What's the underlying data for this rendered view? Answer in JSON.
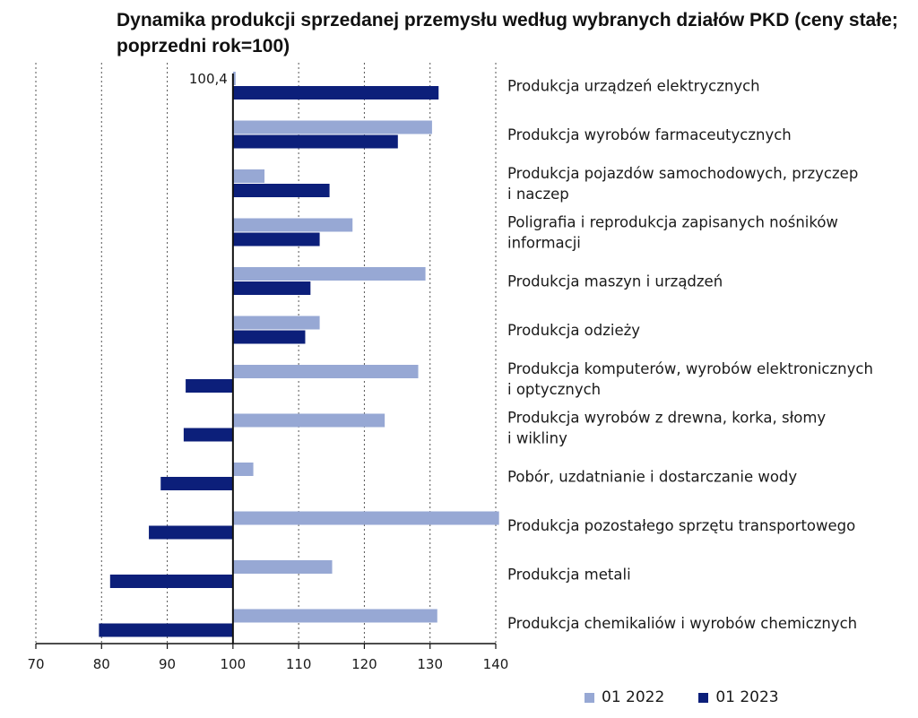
{
  "chart_data": {
    "type": "bar",
    "orientation": "horizontal",
    "title": "Dynamika produkcji sprzedanej przemysłu według wybranych działów PKD (ceny stałe; poprzedni rok=100)",
    "xlim": [
      70,
      140
    ],
    "baseline": 100,
    "x_ticks": [
      "70",
      "80",
      "90",
      "100",
      "110",
      "120",
      "130",
      "140"
    ],
    "grid": "vertical dotted",
    "legend_position": "bottom-right",
    "categories": [
      [
        "Produkcja urządzeń elektrycznych"
      ],
      [
        "Produkcja wyrobów farmaceutycznych"
      ],
      [
        "Produkcja pojazdów samochodowych, przyczep",
        "i naczep"
      ],
      [
        "Poligrafia i reprodukcja zapisanych nośników",
        "informacji"
      ],
      [
        "Produkcja maszyn i urządzeń"
      ],
      [
        "Produkcja odzieży"
      ],
      [
        "Produkcja komputerów, wyrobów elektronicznych",
        "i optycznych"
      ],
      [
        "Produkcja wyrobów z drewna, korka, słomy",
        "i wikliny"
      ],
      [
        "Pobór, uzdatnianie i dostarczanie wody"
      ],
      [
        "Produkcja pozostałego sprzętu transportowego"
      ],
      [
        "Produkcja metali"
      ],
      [
        "Produkcja chemikaliów i wyrobów chemicznych"
      ]
    ],
    "series": [
      {
        "name": "01 2022",
        "color": "#97a8d4",
        "values": [
          100.4,
          130.3,
          104.8,
          118.2,
          129.3,
          113.2,
          128.2,
          123.1,
          103.1,
          140.5,
          115.1,
          131.1
        ]
      },
      {
        "name": "01 2023",
        "color": "#0c1f7a",
        "values": [
          131.3,
          125.1,
          114.7,
          113.2,
          111.8,
          111.0,
          92.8,
          92.5,
          89.0,
          87.2,
          81.3,
          79.6
        ]
      }
    ],
    "annotations": [
      {
        "category_index": 0,
        "series": "01 2022",
        "text": "100,4"
      }
    ]
  }
}
